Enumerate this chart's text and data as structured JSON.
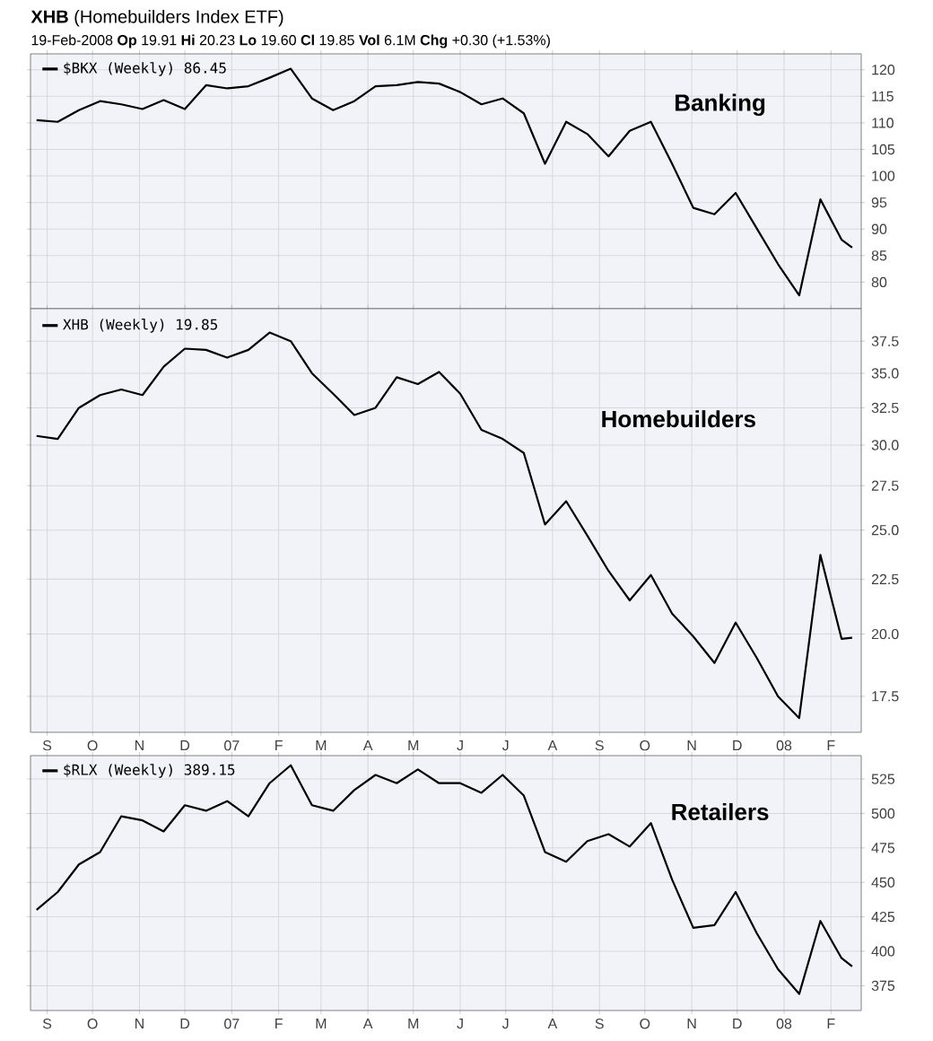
{
  "chart_data": [
    {
      "type": "line",
      "title": "**XHB** (Homebuilders Index ETF)",
      "subtitle": "19-Feb-2008          **Op** 19.91  **Hi** 20.23  **Lo** 19.60  **Cl** 19.85  **Vol** 6.1M  **Chg** +0.30 (+1.53%)",
      "x": [
        "2006-08-25",
        "2006-09-08",
        "2006-09-22",
        "2006-10-06",
        "2006-10-20",
        "2006-11-03",
        "2006-11-17",
        "2006-12-01",
        "2006-12-15",
        "2006-12-29",
        "2007-01-12",
        "2007-01-26",
        "2007-02-09",
        "2007-02-23",
        "2007-03-09",
        "2007-03-23",
        "2007-04-06",
        "2007-04-20",
        "2007-05-04",
        "2007-05-18",
        "2007-06-01",
        "2007-06-15",
        "2007-06-29",
        "2007-07-13",
        "2007-07-27",
        "2007-08-10",
        "2007-08-24",
        "2007-09-07",
        "2007-09-21",
        "2007-10-05",
        "2007-10-19",
        "2007-11-02",
        "2007-11-16",
        "2007-11-30",
        "2007-12-14",
        "2007-12-28",
        "2008-01-11",
        "2008-01-25",
        "2008-02-08",
        "2008-02-15"
      ],
      "series": [
        {
          "name": "$BKX (Weekly) 86.45",
          "color": "#000000",
          "values": [
            110.5,
            110.2,
            112.4,
            114.1,
            113.5,
            112.6,
            114.3,
            112.6,
            117.1,
            116.5,
            116.9,
            118.5,
            120.2,
            114.6,
            112.4,
            114.1,
            116.9,
            117.1,
            117.7,
            117.4,
            115.8,
            113.5,
            114.6,
            111.8,
            102.3,
            110.2,
            107.9,
            103.7,
            108.5,
            110.2,
            102.3,
            94,
            92.8,
            96.8,
            90.1,
            83.4,
            77.5,
            95.6,
            88,
            86.5
          ]
        }
      ],
      "annotations": [
        "Banking"
      ],
      "xlim": [
        "2006-08-21",
        "2008-02-21"
      ],
      "xticks": [
        {
          "value": "2006-09-01",
          "label": null
        },
        {
          "value": "2006-10-01",
          "label": null
        },
        {
          "value": "2006-11-01",
          "label": null
        },
        {
          "value": "2006-12-01",
          "label": null
        },
        {
          "value": "2007-01-01",
          "label": null
        },
        {
          "value": "2007-02-01",
          "label": null
        },
        {
          "value": "2007-03-01",
          "label": null
        },
        {
          "value": "2007-04-01",
          "label": null
        },
        {
          "value": "2007-05-01",
          "label": null
        },
        {
          "value": "2007-06-01",
          "label": null
        },
        {
          "value": "2007-07-01",
          "label": null
        },
        {
          "value": "2007-08-01",
          "label": null
        },
        {
          "value": "2007-09-01",
          "label": null
        },
        {
          "value": "2007-10-01",
          "label": null
        },
        {
          "value": "2007-11-01",
          "label": null
        },
        {
          "value": "2007-12-01",
          "label": null
        },
        {
          "value": "2008-01-01",
          "label": null
        },
        {
          "value": "2008-02-01",
          "label": null
        }
      ],
      "ylim": [
        75,
        123
      ],
      "yticks": [
        80,
        85,
        90,
        95,
        100,
        105,
        110,
        115,
        120
      ],
      "tick_labels": "y",
      "grid": true,
      "legend": "top left"
    },
    {
      "type": "line",
      "x": [
        "2006-08-25",
        "2006-09-08",
        "2006-09-22",
        "2006-10-06",
        "2006-10-20",
        "2006-11-03",
        "2006-11-17",
        "2006-12-01",
        "2006-12-15",
        "2006-12-29",
        "2007-01-12",
        "2007-01-26",
        "2007-02-09",
        "2007-02-23",
        "2007-03-09",
        "2007-03-23",
        "2007-04-06",
        "2007-04-20",
        "2007-05-04",
        "2007-05-18",
        "2007-06-01",
        "2007-06-15",
        "2007-06-29",
        "2007-07-13",
        "2007-07-27",
        "2007-08-10",
        "2007-08-24",
        "2007-09-07",
        "2007-09-21",
        "2007-10-05",
        "2007-10-19",
        "2007-11-02",
        "2007-11-16",
        "2007-11-30",
        "2007-12-14",
        "2007-12-28",
        "2008-01-11",
        "2008-01-25",
        "2008-02-08",
        "2008-02-15"
      ],
      "series": [
        {
          "name": "XHB (Weekly) 19.85",
          "color": "#000000",
          "values": [
            30.6,
            30.4,
            32.5,
            33.4,
            33.8,
            33.4,
            35.5,
            36.9,
            36.8,
            36.2,
            36.8,
            38.2,
            37.5,
            35.0,
            33.5,
            32.0,
            32.5,
            34.7,
            34.2,
            35.1,
            33.5,
            31.0,
            30.4,
            29.5,
            25.3,
            26.6,
            24.7,
            22.9,
            21.5,
            22.7,
            20.9,
            19.9,
            18.8,
            20.5,
            19.0,
            17.5,
            16.7,
            23.7,
            19.8,
            19.85
          ]
        }
      ],
      "annotations": [
        "Homebuilders"
      ],
      "xlim": [
        "2006-08-21",
        "2008-02-21"
      ],
      "xticks": [
        {
          "value": "2006-09-01",
          "label": "S"
        },
        {
          "value": "2006-10-01",
          "label": "O"
        },
        {
          "value": "2006-11-01",
          "label": "N"
        },
        {
          "value": "2006-12-01",
          "label": "D"
        },
        {
          "value": "2007-01-01",
          "label": "07"
        },
        {
          "value": "2007-02-01",
          "label": "F"
        },
        {
          "value": "2007-03-01",
          "label": "M"
        },
        {
          "value": "2007-04-01",
          "label": "A"
        },
        {
          "value": "2007-05-01",
          "label": "M"
        },
        {
          "value": "2007-06-01",
          "label": "J"
        },
        {
          "value": "2007-07-01",
          "label": "J"
        },
        {
          "value": "2007-08-01",
          "label": "A"
        },
        {
          "value": "2007-09-01",
          "label": "S"
        },
        {
          "value": "2007-10-01",
          "label": "O"
        },
        {
          "value": "2007-11-01",
          "label": "N"
        },
        {
          "value": "2007-12-01",
          "label": "D"
        },
        {
          "value": "2008-01-01",
          "label": "08"
        },
        {
          "value": "2008-02-01",
          "label": "F"
        }
      ],
      "ylim": [
        16.2,
        40.2
      ],
      "yticks": [
        17.5,
        {
          "value": 20,
          "label": "20.0"
        },
        22.5,
        {
          "value": 25,
          "label": "25.0"
        },
        27.5,
        {
          "value": 30,
          "label": "30.0"
        },
        32.5,
        {
          "value": 35,
          "label": "35.0"
        },
        37.5
      ],
      "log": true,
      "grid": true,
      "legend": "top left"
    },
    {
      "type": "line",
      "x": [
        "2006-08-25",
        "2006-09-08",
        "2006-09-22",
        "2006-10-06",
        "2006-10-20",
        "2006-11-03",
        "2006-11-17",
        "2006-12-01",
        "2006-12-15",
        "2006-12-29",
        "2007-01-12",
        "2007-01-26",
        "2007-02-09",
        "2007-02-23",
        "2007-03-09",
        "2007-03-23",
        "2007-04-06",
        "2007-04-20",
        "2007-05-04",
        "2007-05-18",
        "2007-06-01",
        "2007-06-15",
        "2007-06-29",
        "2007-07-13",
        "2007-07-27",
        "2007-08-10",
        "2007-08-24",
        "2007-09-07",
        "2007-09-21",
        "2007-10-05",
        "2007-10-19",
        "2007-11-02",
        "2007-11-16",
        "2007-11-30",
        "2007-12-14",
        "2007-12-28",
        "2008-01-11",
        "2008-01-25",
        "2008-02-08",
        "2008-02-15"
      ],
      "series": [
        {
          "name": "$RLX (Weekly) 389.15",
          "color": "#000000",
          "values": [
            430,
            443,
            463,
            472,
            498,
            495,
            487,
            506,
            502,
            509,
            498,
            522,
            535,
            506,
            502,
            517,
            528,
            522,
            532,
            522,
            522,
            515,
            528,
            513,
            472,
            465,
            480,
            485,
            476,
            493,
            452,
            417,
            419,
            443,
            413,
            387,
            369,
            422,
            395,
            389
          ]
        }
      ],
      "annotations": [
        "Retailers"
      ],
      "xlim": [
        "2006-08-21",
        "2008-02-21"
      ],
      "xticks": [
        {
          "value": "2006-09-01",
          "label": "S"
        },
        {
          "value": "2006-10-01",
          "label": "O"
        },
        {
          "value": "2006-11-01",
          "label": "N"
        },
        {
          "value": "2006-12-01",
          "label": "D"
        },
        {
          "value": "2007-01-01",
          "label": "07"
        },
        {
          "value": "2007-02-01",
          "label": "F"
        },
        {
          "value": "2007-03-01",
          "label": "M"
        },
        {
          "value": "2007-04-01",
          "label": "A"
        },
        {
          "value": "2007-05-01",
          "label": "M"
        },
        {
          "value": "2007-06-01",
          "label": "J"
        },
        {
          "value": "2007-07-01",
          "label": "J"
        },
        {
          "value": "2007-08-01",
          "label": "A"
        },
        {
          "value": "2007-09-01",
          "label": "S"
        },
        {
          "value": "2007-10-01",
          "label": "O"
        },
        {
          "value": "2007-11-01",
          "label": "N"
        },
        {
          "value": "2007-12-01",
          "label": "D"
        },
        {
          "value": "2008-01-01",
          "label": "08"
        },
        {
          "value": "2008-02-01",
          "label": "F"
        }
      ],
      "ylim": [
        357,
        542
      ],
      "yticks": [
        375,
        400,
        425,
        450,
        475,
        500,
        525
      ],
      "grid": true,
      "legend": "top left"
    }
  ]
}
